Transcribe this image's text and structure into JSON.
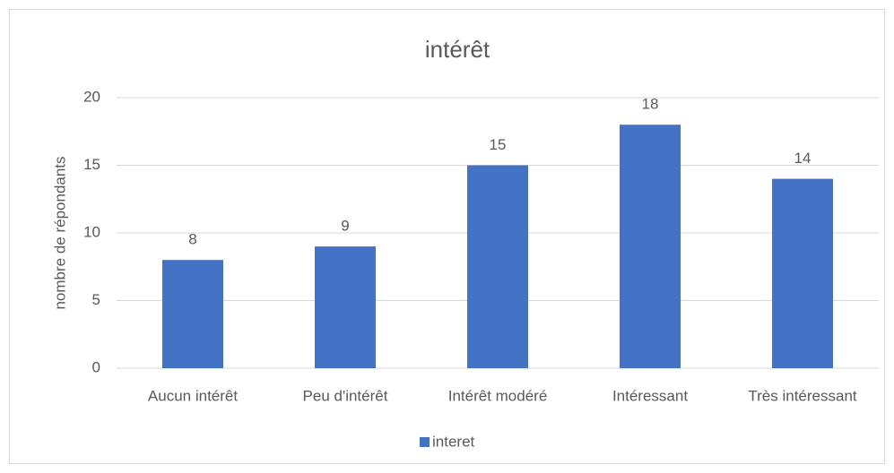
{
  "chart_data": {
    "type": "bar",
    "title": "intérêt",
    "y_label": "nombre de répondants",
    "categories": [
      "Aucun intérêt",
      "Peu d'intérêt",
      "Intérêt modéré",
      "Intéressant",
      "Très intéressant"
    ],
    "series": [
      {
        "name": "interet",
        "color": "#4472c4",
        "values": [
          8,
          9,
          15,
          18,
          14
        ]
      }
    ],
    "ylim": [
      0,
      20
    ],
    "yticks": [
      0,
      5,
      10,
      15,
      20
    ],
    "grid": true,
    "legend": "bottom",
    "data_labels": true
  }
}
